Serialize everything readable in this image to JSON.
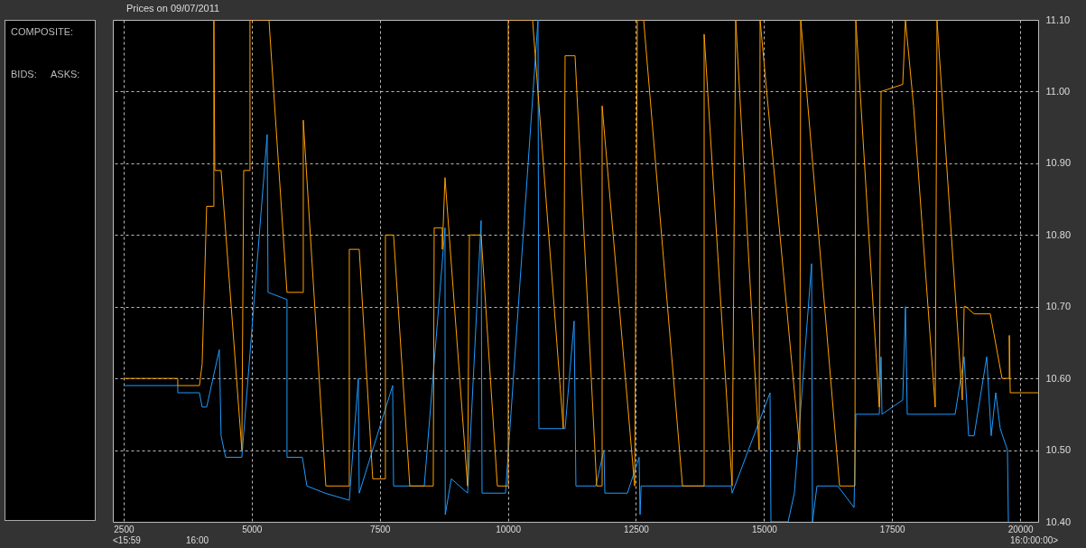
{
  "chart_data": {
    "type": "line",
    "title": "Prices on 09/07/2011",
    "annotations": [
      "COMPOSITE:",
      "BIDS:",
      "ASKS:",
      "<15:59",
      "16:00",
      "16:0:00:00>"
    ],
    "xlim": [
      2290,
      20350
    ],
    "xticks": [
      2500,
      5000,
      7500,
      10000,
      12500,
      15000,
      17500,
      20000
    ],
    "ylim": [
      10.4,
      11.1
    ],
    "yticks": [
      {
        "value": 10.4,
        "label": "10.40"
      },
      {
        "value": 10.5,
        "label": "10.50"
      },
      {
        "value": 10.6,
        "label": "10.60"
      },
      {
        "value": 10.7,
        "label": "10.70"
      },
      {
        "value": 10.8,
        "label": "10.80"
      },
      {
        "value": 10.9,
        "label": "10.90"
      },
      {
        "value": 11.0,
        "label": "11.00"
      },
      {
        "value": 11.1,
        "label": "11.10"
      }
    ],
    "grid": true,
    "line_style": "solid",
    "series": [
      {
        "color": "#1e9bff",
        "x": [
          2500,
          3557,
          3557,
          3980,
          4033,
          4121,
          4368,
          4403,
          4491,
          4808,
          5302,
          5319,
          5689,
          5689,
          5989,
          6077,
          6430,
          6905,
          7081,
          7099,
          7751,
          7769,
          8368,
          8773,
          8778,
          8896,
          9214,
          9478,
          9496,
          9954,
          10588,
          10606,
          11117,
          11293,
          11328,
          11716,
          11875,
          11893,
          12333,
          12562,
          12580,
          12600,
          14359,
          14377,
          15117,
          15135,
          15469,
          15592,
          15928,
          15945,
          16033,
          16438,
          16756,
          16791,
          17249,
          17284,
          17302,
          17707,
          17760,
          17795,
          18729,
          18905,
          18993,
          19099,
          19346,
          19434,
          19522,
          19610,
          19751,
          19769
        ],
        "values": [
          10.59,
          10.59,
          10.58,
          10.58,
          10.56,
          10.56,
          10.64,
          10.52,
          10.49,
          10.49,
          10.94,
          10.72,
          10.71,
          10.49,
          10.49,
          10.45,
          10.44,
          10.43,
          10.6,
          10.44,
          10.59,
          10.45,
          10.45,
          10.81,
          10.41,
          10.46,
          10.44,
          10.82,
          10.44,
          10.44,
          11.1,
          10.53,
          10.53,
          10.68,
          10.45,
          10.45,
          10.5,
          10.44,
          10.44,
          10.49,
          10.41,
          10.45,
          10.45,
          10.44,
          10.58,
          10.4,
          10.4,
          10.44,
          10.76,
          10.4,
          10.45,
          10.45,
          10.42,
          10.55,
          10.55,
          10.63,
          10.55,
          10.57,
          10.7,
          10.55,
          10.55,
          10.63,
          10.52,
          10.52,
          10.63,
          10.52,
          10.58,
          10.53,
          10.5,
          10.4
        ]
      },
      {
        "color": "#ffa000",
        "x": [
          2500,
          3557,
          3557,
          3980,
          4033,
          4121,
          4262,
          4262,
          4280,
          4403,
          4808,
          4844,
          4967,
          4967,
          5337,
          5689,
          6007,
          6007,
          6447,
          6905,
          6905,
          7099,
          7363,
          7610,
          7610,
          7769,
          8086,
          8544,
          8562,
          8720,
          8720,
          8773,
          9214,
          9249,
          9478,
          9795,
          10007,
          10007,
          10482,
          11082,
          11117,
          11311,
          11734,
          11840,
          11840,
          12474,
          12527,
          12650,
          13408,
          13831,
          13831,
          14377,
          14447,
          14905,
          14923,
          15698,
          15716,
          16474,
          16773,
          16791,
          17249,
          17284,
          17707,
          17760,
          17918,
          18341,
          18376,
          18870,
          18905,
          18940,
          19099,
          19134,
          19416,
          19645,
          19787,
          19787,
          19805,
          20350
        ],
        "values": [
          10.6,
          10.6,
          10.59,
          10.59,
          10.62,
          10.84,
          10.84,
          11.1,
          10.89,
          10.89,
          10.5,
          10.89,
          10.89,
          11.1,
          11.1,
          10.72,
          10.72,
          10.96,
          10.45,
          10.45,
          10.78,
          10.78,
          10.46,
          10.46,
          10.8,
          10.8,
          10.45,
          10.45,
          10.81,
          10.81,
          10.78,
          10.88,
          10.45,
          10.8,
          10.8,
          10.45,
          10.45,
          11.1,
          11.1,
          10.53,
          11.05,
          11.05,
          10.45,
          10.45,
          10.98,
          10.45,
          11.1,
          11.1,
          10.45,
          10.45,
          11.08,
          10.45,
          11.1,
          10.5,
          11.1,
          10.5,
          11.1,
          10.45,
          10.45,
          11.1,
          10.56,
          11.0,
          11.01,
          11.1,
          10.98,
          10.56,
          11.1,
          10.57,
          10.7,
          10.7,
          10.69,
          10.69,
          10.69,
          10.6,
          10.6,
          10.66,
          10.58,
          10.58
        ]
      }
    ]
  }
}
